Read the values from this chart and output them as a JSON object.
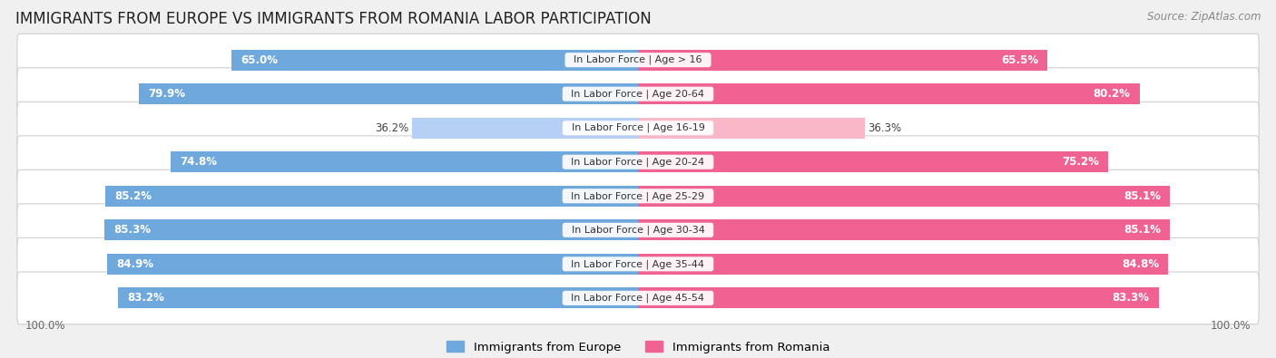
{
  "title": "IMMIGRANTS FROM EUROPE VS IMMIGRANTS FROM ROMANIA LABOR PARTICIPATION",
  "source": "Source: ZipAtlas.com",
  "categories": [
    "In Labor Force | Age > 16",
    "In Labor Force | Age 20-64",
    "In Labor Force | Age 16-19",
    "In Labor Force | Age 20-24",
    "In Labor Force | Age 25-29",
    "In Labor Force | Age 30-34",
    "In Labor Force | Age 35-44",
    "In Labor Force | Age 45-54"
  ],
  "europe_values": [
    65.0,
    79.9,
    36.2,
    74.8,
    85.2,
    85.3,
    84.9,
    83.2
  ],
  "romania_values": [
    65.5,
    80.2,
    36.3,
    75.2,
    85.1,
    85.1,
    84.8,
    83.3
  ],
  "europe_color": "#6fa8dc",
  "europe_color_light": "#b6cff5",
  "romania_color": "#f06292",
  "romania_color_light": "#f9b8c8",
  "bar_height": 0.62,
  "background_color": "#f0f0f0",
  "row_bg_color": "#ffffff",
  "label_color_white": "#ffffff",
  "label_color_dark": "#555555",
  "title_fontsize": 12,
  "source_fontsize": 8.5,
  "bar_label_fontsize": 8.5,
  "category_fontsize": 8,
  "legend_fontsize": 9.5,
  "xlim": 100,
  "legend_europe": "Immigrants from Europe",
  "legend_romania": "Immigrants from Romania"
}
